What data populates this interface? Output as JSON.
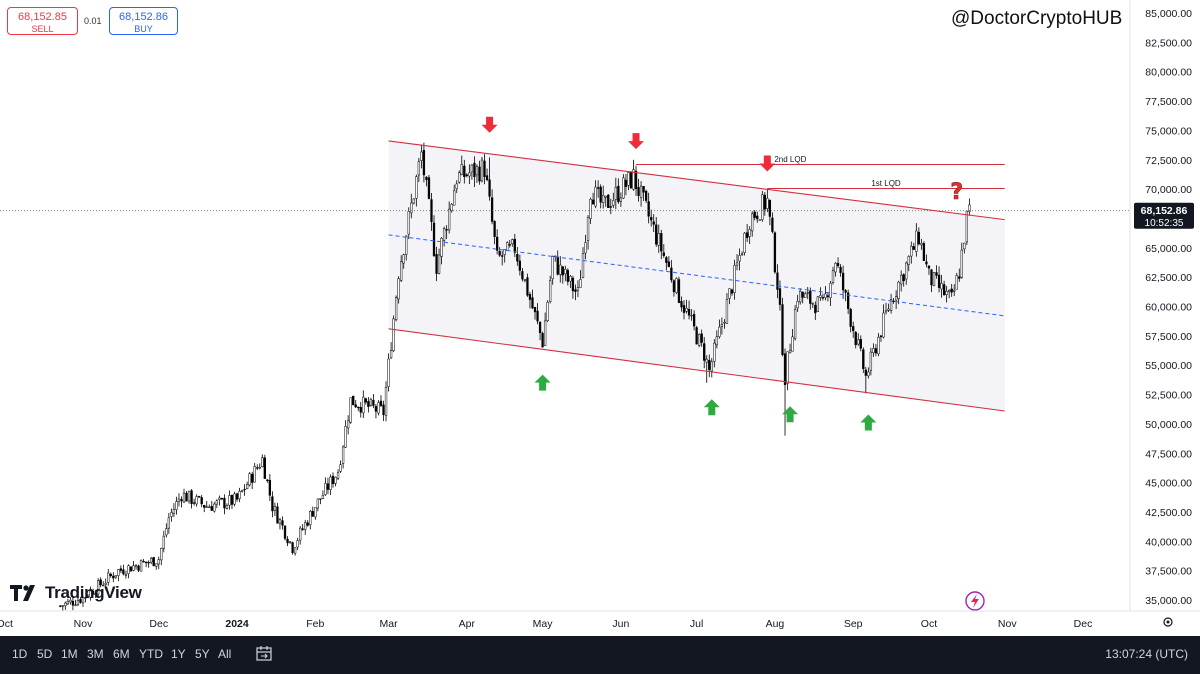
{
  "trade": {
    "sell_price": "68,152.85",
    "sell_label": "SELL",
    "spread": "0.01",
    "buy_price": "68,152.86",
    "buy_label": "BUY"
  },
  "watermark": "@DoctorCryptoHUB",
  "logo_text": "TradingView",
  "price_axis": {
    "labels": [
      "85,000.00",
      "82,500.00",
      "80,000.00",
      "77,500.00",
      "75,000.00",
      "72,500.00",
      "70,000.00",
      "67,500.00",
      "65,000.00",
      "62,500.00",
      "60,000.00",
      "57,500.00",
      "55,000.00",
      "52,500.00",
      "50,000.00",
      "47,500.00",
      "45,000.00",
      "42,500.00",
      "40,000.00",
      "37,500.00",
      "35,000.00"
    ],
    "current_price": "68,152.86",
    "countdown": "10:52:35"
  },
  "time_axis": {
    "labels": [
      "Oct",
      "Nov",
      "Dec",
      "2024",
      "Feb",
      "Mar",
      "Apr",
      "May",
      "Jun",
      "Jul",
      "Aug",
      "Sep",
      "Oct",
      "Nov",
      "Dec"
    ]
  },
  "annotations": {
    "lqd1": "1st LQD",
    "lqd2": "2nd LQD",
    "question": "?"
  },
  "colors": {
    "up": "#089981",
    "down": "#f23645",
    "channel_line": "#d32f3f",
    "midline": "#2962ff",
    "down_arrow": "#ef2b3a",
    "up_arrow": "#2eaa42",
    "label_bg": "#131722"
  },
  "toolbar": {
    "timeframes": [
      "1D",
      "5D",
      "1M",
      "3M",
      "6M",
      "YTD",
      "1Y",
      "5Y",
      "All"
    ],
    "clock": "13:07:24 (UTC)"
  },
  "chart_data": {
    "type": "candlestick",
    "symbol_price": 68152.86,
    "ylim": [
      34000,
      86000
    ],
    "close_path": [
      {
        "d": "2023-10-23",
        "p": 34500
      },
      {
        "d": "2023-11-01",
        "p": 35200
      },
      {
        "d": "2023-11-15",
        "p": 37500
      },
      {
        "d": "2023-12-01",
        "p": 38500
      },
      {
        "d": "2023-12-05",
        "p": 42000
      },
      {
        "d": "2023-12-10",
        "p": 44000
      },
      {
        "d": "2023-12-20",
        "p": 43000
      },
      {
        "d": "2024-01-01",
        "p": 43500
      },
      {
        "d": "2024-01-11",
        "p": 47000
      },
      {
        "d": "2024-01-15",
        "p": 43000
      },
      {
        "d": "2024-01-23",
        "p": 39500
      },
      {
        "d": "2024-02-01",
        "p": 43000
      },
      {
        "d": "2024-02-10",
        "p": 46000
      },
      {
        "d": "2024-02-15",
        "p": 52000
      },
      {
        "d": "2024-02-28",
        "p": 51000
      },
      {
        "d": "2024-03-05",
        "p": 63000
      },
      {
        "d": "2024-03-14",
        "p": 73000
      },
      {
        "d": "2024-03-20",
        "p": 63500
      },
      {
        "d": "2024-03-28",
        "p": 71000
      },
      {
        "d": "2024-04-08",
        "p": 71800
      },
      {
        "d": "2024-04-13",
        "p": 64000
      },
      {
        "d": "2024-04-20",
        "p": 65000
      },
      {
        "d": "2024-05-01",
        "p": 57000
      },
      {
        "d": "2024-05-05",
        "p": 64000
      },
      {
        "d": "2024-05-15",
        "p": 61000
      },
      {
        "d": "2024-05-20",
        "p": 70000
      },
      {
        "d": "2024-05-25",
        "p": 68500
      },
      {
        "d": "2024-06-06",
        "p": 71000
      },
      {
        "d": "2024-06-15",
        "p": 66000
      },
      {
        "d": "2024-06-24",
        "p": 61000
      },
      {
        "d": "2024-07-04",
        "p": 56000
      },
      {
        "d": "2024-07-06",
        "p": 54500
      },
      {
        "d": "2024-07-14",
        "p": 61000
      },
      {
        "d": "2024-07-22",
        "p": 67500
      },
      {
        "d": "2024-07-29",
        "p": 69000
      },
      {
        "d": "2024-08-02",
        "p": 62000
      },
      {
        "d": "2024-08-05",
        "p": 54000
      },
      {
        "d": "2024-08-10",
        "p": 61000
      },
      {
        "d": "2024-08-20",
        "p": 60000
      },
      {
        "d": "2024-08-25",
        "p": 64000
      },
      {
        "d": "2024-09-06",
        "p": 54000
      },
      {
        "d": "2024-09-15",
        "p": 60000
      },
      {
        "d": "2024-09-27",
        "p": 66000
      },
      {
        "d": "2024-10-01",
        "p": 62500
      },
      {
        "d": "2024-10-10",
        "p": 60500
      },
      {
        "d": "2024-10-13",
        "p": 63000
      },
      {
        "d": "2024-10-16",
        "p": 67500
      },
      {
        "d": "2024-10-17",
        "p": 68152
      }
    ],
    "wick_extremes": [
      {
        "d": "2024-03-14",
        "p": 73800
      },
      {
        "d": "2024-04-10",
        "p": 72700
      },
      {
        "d": "2024-05-01",
        "p": 56500
      },
      {
        "d": "2024-06-07",
        "p": 72000
      },
      {
        "d": "2024-07-05",
        "p": 53500
      },
      {
        "d": "2024-07-29",
        "p": 70000
      },
      {
        "d": "2024-08-05",
        "p": 49000
      },
      {
        "d": "2024-09-06",
        "p": 52600
      }
    ],
    "channel": {
      "upper": [
        {
          "d": "2024-03-01",
          "p": 74100
        },
        {
          "d": "2024-10-31",
          "p": 67400
        }
      ],
      "lower": [
        {
          "d": "2024-03-01",
          "p": 58100
        },
        {
          "d": "2024-10-31",
          "p": 51100
        }
      ],
      "mid": [
        {
          "d": "2024-03-01",
          "p": 66100
        },
        {
          "d": "2024-10-31",
          "p": 59200
        }
      ]
    },
    "liquidity_lines": [
      {
        "label": "2nd LQD",
        "from": "2024-06-07",
        "to": "2024-10-31",
        "p": 72100
      },
      {
        "label": "1st LQD",
        "from": "2024-07-29",
        "to": "2024-10-31",
        "p": 70050
      }
    ],
    "down_arrows": [
      {
        "d": "2024-04-10",
        "p": 74800
      },
      {
        "d": "2024-06-07",
        "p": 73400
      },
      {
        "d": "2024-07-29",
        "p": 71500
      }
    ],
    "up_arrows": [
      {
        "d": "2024-05-01",
        "p": 54200
      },
      {
        "d": "2024-07-07",
        "p": 52100
      },
      {
        "d": "2024-08-07",
        "p": 51500
      },
      {
        "d": "2024-09-07",
        "p": 50800
      }
    ],
    "question_mark": {
      "d": "2024-10-12",
      "p": 70000
    },
    "xlim": [
      "2023-10-01",
      "2024-12-31"
    ]
  }
}
